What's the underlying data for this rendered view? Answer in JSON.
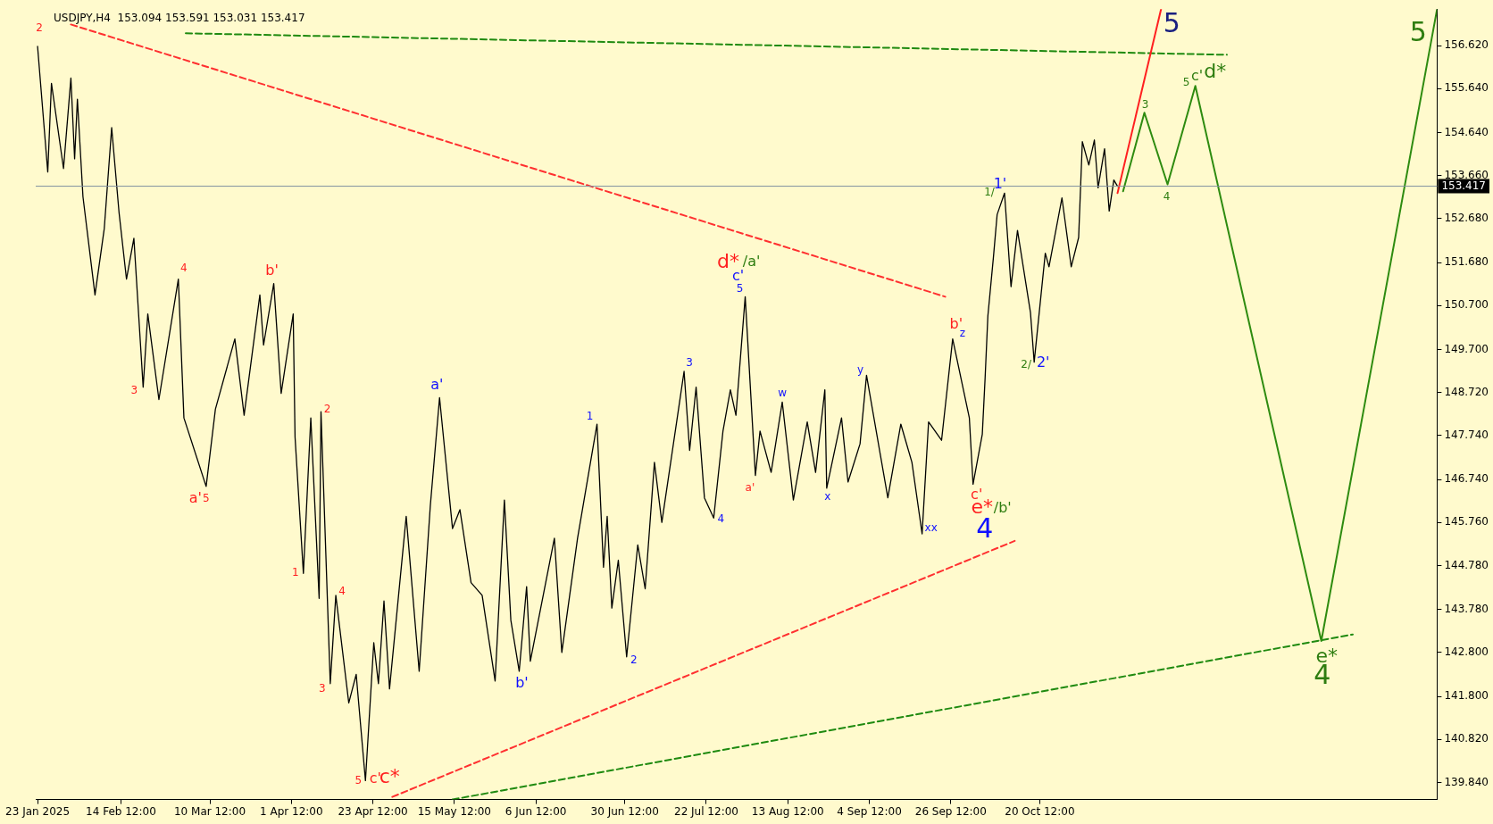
{
  "chart_data": {
    "type": "line",
    "title": "USDJPY,H4  153.094 153.591 153.031 153.417",
    "xlim": [
      "2025-01-22T12:00",
      "2026-02-04T18:00"
    ],
    "ylim": [
      139.45,
      157.45
    ],
    "xticks": [
      {
        "value": "2025-01-23",
        "label": "23 Jan 2025"
      },
      {
        "value": "2025-02-14T12:00",
        "label": "14 Feb 12:00"
      },
      {
        "value": "2025-03-10T12:00",
        "label": "10 Mar 12:00"
      },
      {
        "value": "2025-04-01T12:00",
        "label": "1 Apr 12:00"
      },
      {
        "value": "2025-04-23T12:00",
        "label": "23 Apr 12:00"
      },
      {
        "value": "2025-05-15T12:00",
        "label": "15 May 12:00"
      },
      {
        "value": "2025-06-06T12:00",
        "label": "6 Jun 12:00"
      },
      {
        "value": "2025-06-30T12:00",
        "label": "30 Jun 12:00"
      },
      {
        "value": "2025-07-22T12:00",
        "label": "22 Jul 12:00"
      },
      {
        "value": "2025-08-13T12:00",
        "label": "13 Aug 12:00"
      },
      {
        "value": "2025-09-04T12:00",
        "label": "4 Sep 12:00"
      },
      {
        "value": "2025-09-26T12:00",
        "label": "26 Sep 12:00"
      },
      {
        "value": "2025-10-20T12:00",
        "label": "20 Oct 12:00"
      }
    ],
    "yticks": [
      {
        "value": 139.84,
        "label": "139.840"
      },
      {
        "value": 140.82,
        "label": "140.820"
      },
      {
        "value": 141.8,
        "label": "141.800"
      },
      {
        "value": 142.8,
        "label": "142.800"
      },
      {
        "value": 143.78,
        "label": "143.780"
      },
      {
        "value": 144.78,
        "label": "144.780"
      },
      {
        "value": 145.76,
        "label": "145.760"
      },
      {
        "value": 146.74,
        "label": "146.740"
      },
      {
        "value": 147.74,
        "label": "147.740"
      },
      {
        "value": 148.72,
        "label": "148.720"
      },
      {
        "value": 149.7,
        "label": "149.700"
      },
      {
        "value": 150.7,
        "label": "150.700"
      },
      {
        "value": 151.68,
        "label": "151.680"
      },
      {
        "value": 152.68,
        "label": "152.680"
      },
      {
        "value": 153.66,
        "label": "153.660"
      },
      {
        "value": 154.64,
        "label": "154.640"
      },
      {
        "value": 155.64,
        "label": "155.640"
      },
      {
        "value": 156.62,
        "label": "156.620"
      }
    ],
    "grid": false,
    "legend": false,
    "marker": "none",
    "series": [
      {
        "color": "#000000",
        "line_style": "solid",
        "x": [
          "2025-01-23",
          "2025-01-25T18:00",
          "2025-01-26T18:00",
          "2025-01-30",
          "2025-02-01",
          "2025-02-02",
          "2025-02-02T18:00",
          "2025-02-04T06:00",
          "2025-02-07T12:00",
          "2025-02-10",
          "2025-02-12",
          "2025-02-14",
          "2025-02-16",
          "2025-02-18",
          "2025-02-20T12:00",
          "2025-02-21T18:00",
          "2025-02-24T18:00",
          "2025-03-02",
          "2025-03-03T12:00",
          "2025-03-09T12:00",
          "2025-03-12",
          "2025-03-17T06:00",
          "2025-03-19T18:00",
          "2025-03-24",
          "2025-03-25",
          "2025-03-27T18:00",
          "2025-03-29T18:00",
          "2025-04-02",
          "2025-04-02T12:00",
          "2025-04-04T18:00",
          "2025-04-06T18:00",
          "2025-04-09",
          "2025-04-09T12:00",
          "2025-04-12",
          "2025-04-13T12:00",
          "2025-04-17",
          "2025-04-19",
          "2025-04-21T12:00",
          "2025-04-23T18:00",
          "2025-04-25",
          "2025-04-26T12:00",
          "2025-04-28",
          "2025-05-02T12:00",
          "2025-05-06",
          "2025-05-09",
          "2025-05-11T12:00",
          "2025-05-15",
          "2025-05-17",
          "2025-05-20",
          "2025-05-23",
          "2025-05-26T12:00",
          "2025-05-29",
          "2025-05-30T18:00",
          "2025-06-02",
          "2025-06-04",
          "2025-06-05",
          "2025-06-11T12:00",
          "2025-06-13T12:00",
          "2025-06-17T18:00",
          "2025-06-23",
          "2025-06-24T18:00",
          "2025-06-25T18:00",
          "2025-06-27",
          "2025-06-28T18:00",
          "2025-07-01",
          "2025-07-04",
          "2025-07-06",
          "2025-07-08T12:00",
          "2025-07-10T12:00",
          "2025-07-16T12:00",
          "2025-07-18",
          "2025-07-19T18:00",
          "2025-07-22",
          "2025-07-24T12:00",
          "2025-07-27",
          "2025-07-29",
          "2025-07-30T12:00",
          "2025-08-02",
          "2025-08-04T18:00",
          "2025-08-06",
          "2025-08-09",
          "2025-08-12",
          "2025-08-15",
          "2025-08-18T18:00",
          "2025-08-21",
          "2025-08-23T12:00",
          "2025-08-24",
          "2025-08-28",
          "2025-08-29T18:00",
          "2025-09-02",
          "2025-09-03T18:00",
          "2025-09-09T12:00",
          "2025-09-13",
          "2025-09-16",
          "2025-09-18T18:00",
          "2025-09-20T12:00",
          "2025-09-24",
          "2025-09-27",
          "2025-10-01T12:00",
          "2025-10-02T12:00",
          "2025-10-05",
          "2025-10-05T18:00",
          "2025-10-06T12:00",
          "2025-10-08",
          "2025-10-09",
          "2025-10-11",
          "2025-10-12T18:00",
          "2025-10-14T12:00",
          "2025-10-18",
          "2025-10-19",
          "2025-10-22",
          "2025-10-23",
          "2025-10-26T12:00",
          "2025-10-29",
          "2025-10-31",
          "2025-11-01",
          "2025-11-02T18:00",
          "2025-11-04T06:00",
          "2025-11-05T06:00",
          "2025-11-07",
          "2025-11-08T06:00",
          "2025-11-09T12:00",
          "2025-11-10T12:00"
        ],
        "values": [
          156.6,
          153.74,
          155.76,
          153.82,
          155.88,
          154.04,
          155.4,
          153.18,
          150.94,
          152.45,
          154.75,
          152.81,
          151.3,
          152.23,
          148.84,
          150.51,
          148.56,
          151.3,
          148.14,
          146.58,
          148.34,
          149.94,
          148.2,
          150.94,
          149.8,
          151.2,
          148.7,
          150.51,
          147.7,
          144.6,
          148.14,
          144.03,
          148.28,
          142.09,
          144.1,
          141.65,
          142.3,
          139.88,
          143.02,
          142.09,
          143.97,
          141.97,
          145.9,
          142.37,
          146.13,
          148.6,
          145.62,
          146.05,
          144.39,
          144.1,
          142.15,
          146.27,
          143.53,
          142.37,
          144.3,
          142.6,
          145.4,
          142.8,
          145.4,
          148.0,
          144.74,
          145.9,
          143.81,
          144.9,
          142.7,
          145.25,
          144.25,
          147.13,
          145.76,
          149.2,
          147.4,
          148.84,
          146.32,
          145.86,
          147.84,
          148.78,
          148.2,
          150.9,
          146.83,
          147.84,
          146.9,
          148.5,
          146.27,
          148.05,
          146.9,
          148.78,
          146.54,
          148.14,
          146.68,
          147.55,
          149.11,
          146.32,
          148.0,
          147.13,
          145.5,
          148.05,
          147.63,
          149.94,
          148.14,
          146.63,
          147.77,
          149.04,
          150.46,
          151.8,
          152.77,
          153.26,
          151.13,
          152.41,
          150.54,
          149.41,
          151.89,
          151.58,
          153.15,
          151.58,
          152.25,
          154.43,
          153.9,
          154.47,
          153.38,
          154.27,
          152.85,
          153.56,
          153.417
        ]
      },
      {
        "color": "#ff2020",
        "line_style": "solid",
        "x": [
          "2025-11-10T12:00",
          "2025-11-22T06:00"
        ],
        "values": [
          153.26,
          157.45
        ]
      },
      {
        "color": "#2e8b10",
        "line_style": "solid",
        "x": [
          "2025-11-12",
          "2025-11-17T18:00",
          "2025-11-24",
          "2025-12-01T12:00",
          "2026-01-04T12:00",
          "2026-02-04T18:00"
        ],
        "values": [
          153.3,
          155.09,
          153.46,
          155.7,
          143.06,
          157.45
        ]
      },
      {
        "color": "#ff3030",
        "line_style": "dashed",
        "x": [
          "2025-02-01",
          "2025-09-25"
        ],
        "values": [
          157.1,
          150.9
        ]
      },
      {
        "color": "#ff3030",
        "line_style": "dashed",
        "x": [
          "2025-04-28T18:00",
          "2025-10-13T18:00"
        ],
        "values": [
          139.51,
          145.34
        ]
      },
      {
        "color": "#1f8a10",
        "line_style": "dashed",
        "x": [
          "2025-03-04",
          "2025-12-10"
        ],
        "values": [
          156.9,
          156.41
        ]
      },
      {
        "color": "#1f8a10",
        "line_style": "dashed",
        "x": [
          "2025-05-15",
          "2026-01-13"
        ],
        "values": [
          139.45,
          143.21
        ]
      }
    ],
    "ref_lines": [
      {
        "axis": "y",
        "value": 153.417,
        "label": "153.417",
        "color": "#8090a0"
      }
    ],
    "annotations": [
      {
        "text": "2",
        "x": "2025-01-23",
        "y": 156.6
      },
      {
        "text": "3",
        "x": "2025-02-20T12:00",
        "y": 148.84
      },
      {
        "text": "4",
        "x": "2025-03-02",
        "y": 151.3
      },
      {
        "text": "a'",
        "x": "2025-03-09T12:00",
        "y": 146.58
      },
      {
        "text": "5",
        "x": "2025-03-09T12:00",
        "y": 146.58
      },
      {
        "text": "b'",
        "x": "2025-03-27T18:00",
        "y": 151.2
      },
      {
        "text": "1",
        "x": "2025-04-04T18:00",
        "y": 144.6
      },
      {
        "text": "3",
        "x": "2025-04-12",
        "y": 142.09
      },
      {
        "text": "2",
        "x": "2025-04-09T12:00",
        "y": 148.28
      },
      {
        "text": "4",
        "x": "2025-04-13T12:00",
        "y": 144.1
      },
      {
        "text": "5",
        "x": "2025-04-21T12:00",
        "y": 139.88
      },
      {
        "text": "c'",
        "x": "2025-04-21T12:00",
        "y": 139.88
      },
      {
        "text": "c*",
        "x": "2025-04-21T12:00",
        "y": 139.88
      },
      {
        "text": "a'",
        "x": "2025-05-11T12:00",
        "y": 148.6
      },
      {
        "text": "b'",
        "x": "2025-06-02",
        "y": 142.37
      },
      {
        "text": "1",
        "x": "2025-06-23",
        "y": 148.0
      },
      {
        "text": "2",
        "x": "2025-07-01",
        "y": 142.7
      },
      {
        "text": "3",
        "x": "2025-07-16T12:00",
        "y": 149.2
      },
      {
        "text": "4",
        "x": "2025-07-24T12:00",
        "y": 145.86
      },
      {
        "text": "d*",
        "x": "2025-08-02",
        "y": 150.9
      },
      {
        "text": "c'",
        "x": "2025-08-02",
        "y": 150.9
      },
      {
        "text": "5",
        "x": "2025-08-02",
        "y": 150.9
      },
      {
        "text": "a'",
        "x": "2025-08-04T18:00",
        "y": 146.83
      },
      {
        "text": "/a'",
        "x": "2025-08-02",
        "y": 150.9
      },
      {
        "text": "w",
        "x": "2025-08-12",
        "y": 148.5
      },
      {
        "text": "x",
        "x": "2025-08-24",
        "y": 146.54
      },
      {
        "text": "y",
        "x": "2025-09-03T18:00",
        "y": 149.11
      },
      {
        "text": "xx",
        "x": "2025-09-18T18:00",
        "y": 145.5
      },
      {
        "text": "b'",
        "x": "2025-09-27",
        "y": 149.94
      },
      {
        "text": "z",
        "x": "2025-09-27",
        "y": 149.94
      },
      {
        "text": "c'",
        "x": "2025-10-02T12:00",
        "y": 146.63
      },
      {
        "text": "e*",
        "x": "2025-10-02T12:00",
        "y": 146.63
      },
      {
        "text": "4",
        "x": "2025-10-02T12:00",
        "y": 146.63
      },
      {
        "text": "1/",
        "x": "2025-10-11",
        "y": 153.26
      },
      {
        "text": "1'",
        "x": "2025-10-11",
        "y": 153.26
      },
      {
        "text": "/b'",
        "x": "2025-10-02T12:00",
        "y": 146.63
      },
      {
        "text": "2/",
        "x": "2025-10-19",
        "y": 149.41
      },
      {
        "text": "2'",
        "x": "2025-10-19",
        "y": 149.41
      },
      {
        "text": "3",
        "x": "2025-11-17T18:00",
        "y": 155.09
      },
      {
        "text": "4",
        "x": "2025-11-24",
        "y": 153.46
      },
      {
        "text": "5",
        "x": "2025-11-22T06:00",
        "y": 157.45
      },
      {
        "text": "5",
        "x": "2025-12-01T12:00",
        "y": 155.7
      },
      {
        "text": "c'",
        "x": "2025-12-01T12:00",
        "y": 155.7
      },
      {
        "text": "d*",
        "x": "2025-12-01T12:00",
        "y": 155.7
      },
      {
        "text": "e*",
        "x": "2026-01-04T12:00",
        "y": 143.06
      },
      {
        "text": "4",
        "x": "2026-01-04T12:00",
        "y": 143.06
      },
      {
        "text": "5",
        "x": "2026-02-04T18:00",
        "y": 157.45
      }
    ]
  }
}
